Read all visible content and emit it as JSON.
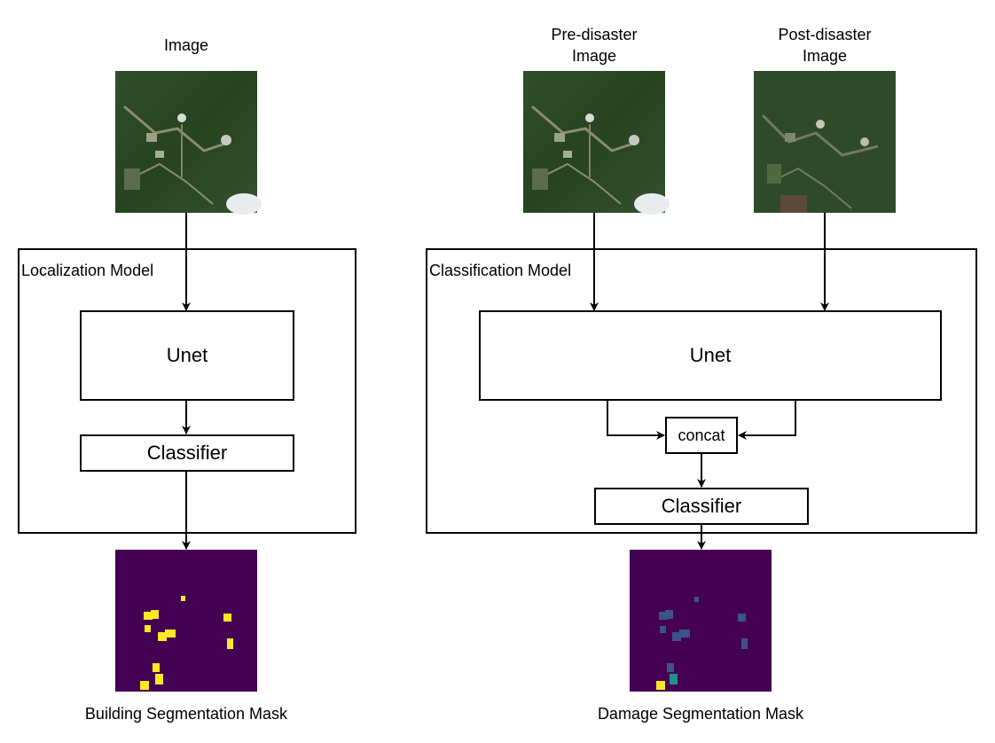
{
  "left": {
    "input_label": "Image",
    "model_label": "Localization Model",
    "unet_label": "Unet",
    "classifier_label": "Classifier",
    "output_label": "Building Segmentation Mask"
  },
  "right": {
    "pre_label_line1": "Pre-disaster",
    "pre_label_line2": "Image",
    "post_label_line1": "Post-disaster",
    "post_label_line2": "Image",
    "model_label": "Classification Model",
    "unet_label": "Unet",
    "concat_label": "concat",
    "classifier_label": "Classifier",
    "output_label": "Damage Segmentation Mask"
  },
  "colors": {
    "satellite_forest": "#2b4a26",
    "mask_background": "#440154",
    "mask_building": "#fde725",
    "mask_damage_class": "#3b528b",
    "mask_damage_class2": "#21908d"
  }
}
